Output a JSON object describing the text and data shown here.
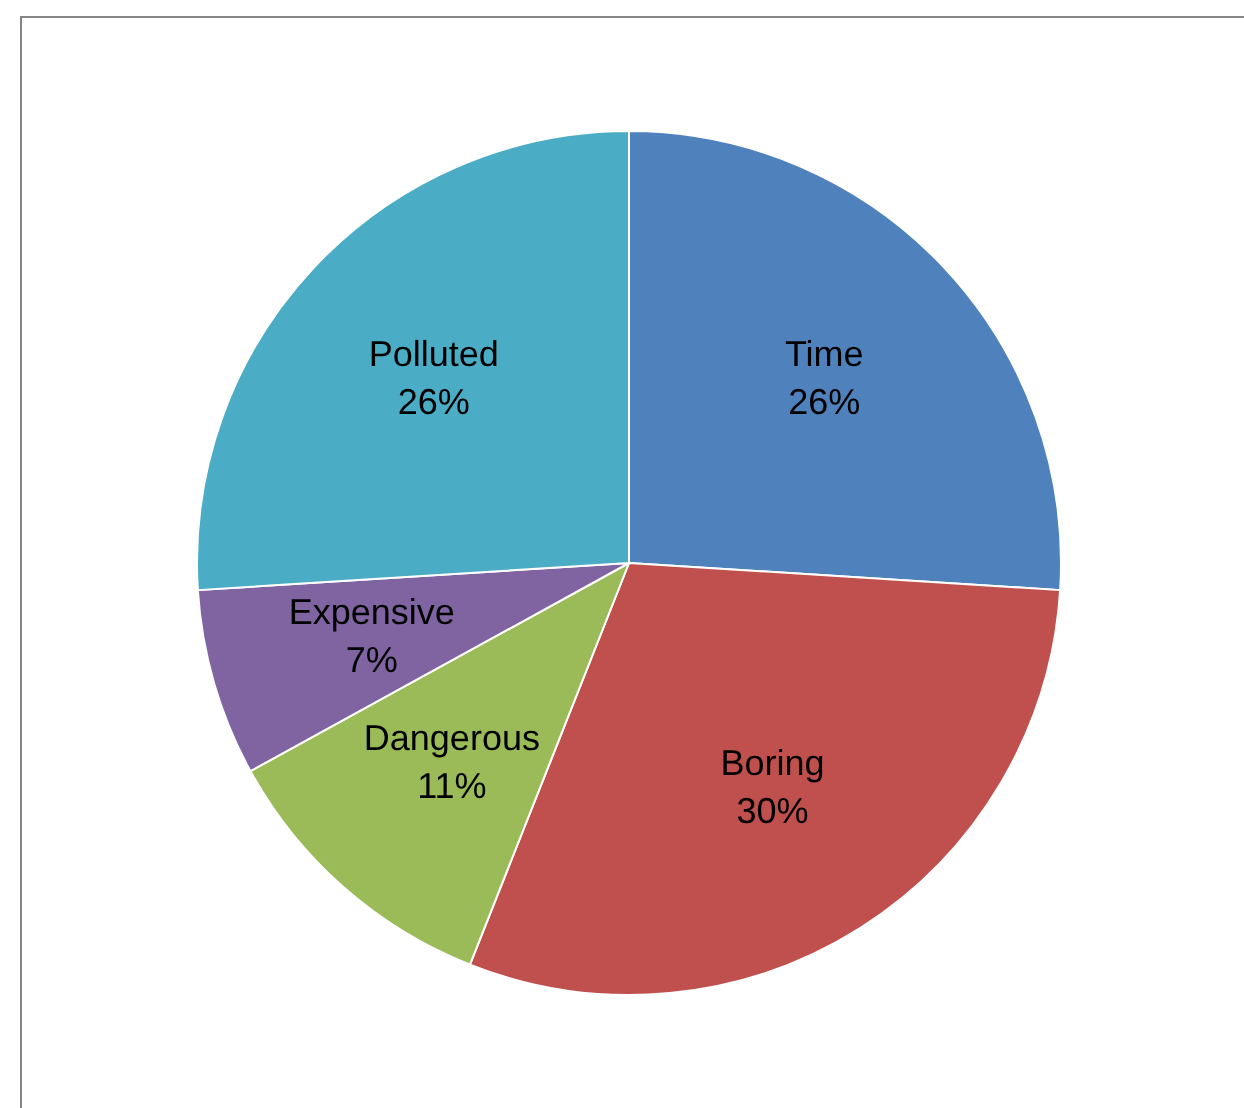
{
  "chart_data": {
    "type": "pie",
    "categories": [
      "Time",
      "Boring",
      "Dangerous",
      "Expensive",
      "Polluted"
    ],
    "values": [
      26,
      30,
      11,
      7,
      26
    ],
    "colors": [
      "#4f81bd",
      "#c0504d",
      "#9bbb59",
      "#8064a2",
      "#4bacc6"
    ],
    "value_labels": [
      "26%",
      "30%",
      "11%",
      "7%",
      "26%"
    ],
    "legend": false
  }
}
